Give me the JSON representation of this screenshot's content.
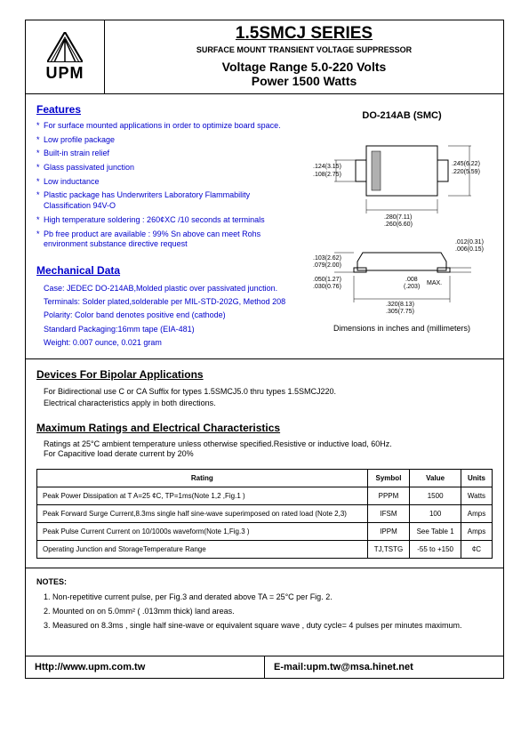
{
  "logo": {
    "text": "UPM"
  },
  "header": {
    "title": "1.5SMCJ SERIES",
    "subtitle": "SURFACE MOUNT TRANSIENT VOLTAGE SUPPRESSOR",
    "voltage": "Voltage Range 5.0-220 Volts",
    "power": "Power 1500 Watts"
  },
  "features": {
    "title": "Features",
    "items": [
      "For surface mounted applications in order to optimize board space.",
      "Low profile package",
      "Built-in strain relief",
      "Glass passivated junction",
      "Low inductance",
      "Plastic package has Underwriters Laboratory Flammability Classification 94V-O",
      "High temperature soldering : 260¢XC /10 seconds at terminals",
      "Pb free product are available : 99% Sn above can meet Rohs environment substance directive request"
    ]
  },
  "package": {
    "title": "DO-214AB (SMC)",
    "dims": {
      "a1": ".124(3.15)",
      "a2": ".108(2.75)",
      "b1": ".245(6.22)",
      "b2": ".220(5.59)",
      "c1": ".280(7.11)",
      "c2": ".260(6.60)",
      "d1": ".012(0.31)",
      "d2": ".006(0.15)",
      "e1": ".103(2.62)",
      "e2": ".079(2.00)",
      "f1": ".050(1.27)",
      "f2": ".030(0.76)",
      "g1": ".008",
      "g2": "(.203)",
      "g3": "MAX.",
      "h1": ".320(8.13)",
      "h2": ".305(7.75)"
    },
    "footnote": "Dimensions in inches and (millimeters)"
  },
  "mechanical": {
    "title": "Mechanical Data",
    "items": [
      "Case: JEDEC DO-214AB,Molded plastic over passivated junction.",
      "Terminals: Solder plated,solderable per MIL-STD-202G, Method 208",
      "Polarity: Color band denotes positive end (cathode)",
      "Standard Packaging:16mm tape (EIA-481)",
      "Weight: 0.007 ounce, 0.021 gram"
    ]
  },
  "bipolar": {
    "title": "Devices For Bipolar Applications",
    "text1": "For Bidirectional use C or CA Suffix for types 1.5SMCJ5.0 thru types 1.5SMCJ220.",
    "text2": "Electrical characteristics apply in both directions."
  },
  "maxratings": {
    "title": "Maximum Ratings and Electrical Characteristics",
    "note1": "Ratings at 25°C ambient temperature unless otherwise specified.Resistive or inductive load, 60Hz.",
    "note2": "For Capacitive load derate current by 20%",
    "columns": [
      "Rating",
      "Symbol",
      "Value",
      "Units"
    ],
    "rows": [
      [
        "Peak Power Dissipation at T A=25 ¢C, TP=1ms(Note 1,2 ,Fig.1 )",
        "PPPM",
        "1500",
        "Watts"
      ],
      [
        "Peak Forward Surge Current,8.3ms single half sine-wave superimposed on rated load (Note 2,3)",
        "IFSM",
        "100",
        "Amps"
      ],
      [
        "Peak Pulse Current Current on 10/1000s waveform(Note 1,Fig.3 )",
        "IPPM",
        "See Table 1",
        "Amps"
      ],
      [
        "Operating Junction and StorageTemperature Range",
        "TJ,TSTG",
        "-55 to +150",
        "¢C"
      ]
    ]
  },
  "notes": {
    "title": "NOTES:",
    "items": [
      "1. Non-repetitive current pulse, per Fig.3 and derated above TA = 25°C per Fig. 2.",
      "2. Mounted on on 5.0mm² ( .013mm thick) land areas.",
      "3. Measured on 8.3ms , single half sine-wave or equivalent square wave , duty cycle= 4 pulses per minutes maximum."
    ]
  },
  "footer": {
    "url": "Http://www.upm.com.tw",
    "email": "E-mail:upm.tw@msa.hinet.net"
  },
  "colors": {
    "link": "#0000cc",
    "border": "#000000"
  }
}
